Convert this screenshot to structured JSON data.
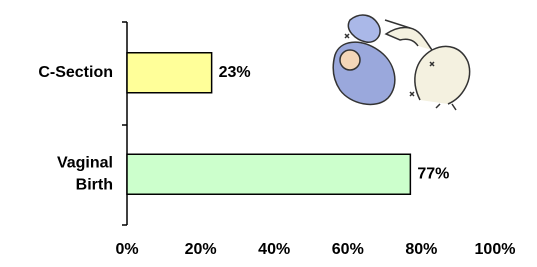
{
  "chart_data": {
    "type": "bar",
    "orientation": "horizontal",
    "categories": [
      "C-Section",
      "Vaginal Birth"
    ],
    "series": [
      {
        "colors": [
          "#ffff99",
          "#ccffcc"
        ],
        "values": [
          23,
          77
        ],
        "value_labels": [
          "23%",
          "77%"
        ]
      }
    ],
    "xlim": [
      0,
      100
    ],
    "xticks": [
      {
        "value": 0,
        "label": "0%"
      },
      {
        "value": 20,
        "label": "20%"
      },
      {
        "value": 40,
        "label": "40%"
      },
      {
        "value": 60,
        "label": "60%"
      },
      {
        "value": 80,
        "label": "80%"
      },
      {
        "value": 100,
        "label": "100%"
      }
    ],
    "grid": false
  }
}
